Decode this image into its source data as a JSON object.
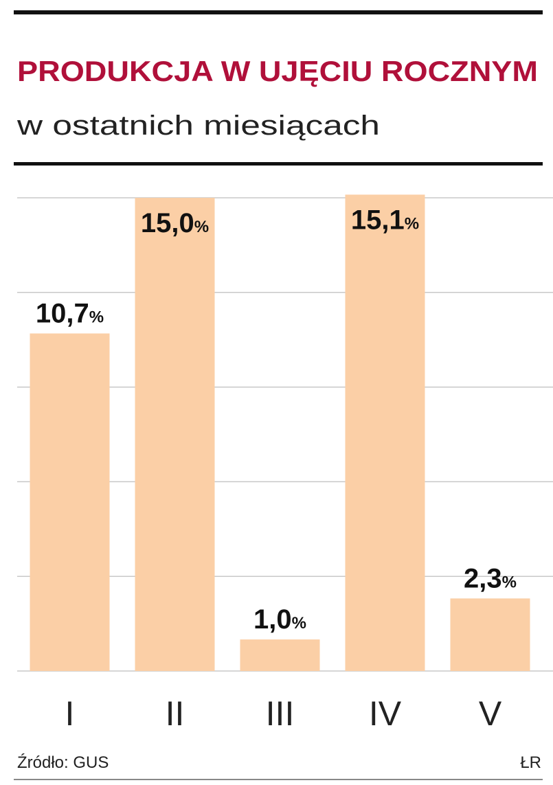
{
  "chart_data": {
    "type": "bar",
    "title": "PRODUKCJA W UJĘCIU ROCZNYM",
    "subtitle": "w ostatnich miesiącach",
    "categories": [
      "I",
      "II",
      "III",
      "IV",
      "V"
    ],
    "values": [
      10.7,
      15.0,
      1.0,
      15.1,
      2.3
    ],
    "value_labels": [
      "10,7%",
      "15,0%",
      "1,0%",
      "15,1%",
      "2,3%"
    ],
    "color": "#fbcfa6",
    "ylim": [
      0,
      15
    ],
    "yticks": [
      0,
      3,
      6,
      9,
      12,
      15
    ],
    "grid": true,
    "source": "Źródło: GUS",
    "credit": "ŁR"
  }
}
